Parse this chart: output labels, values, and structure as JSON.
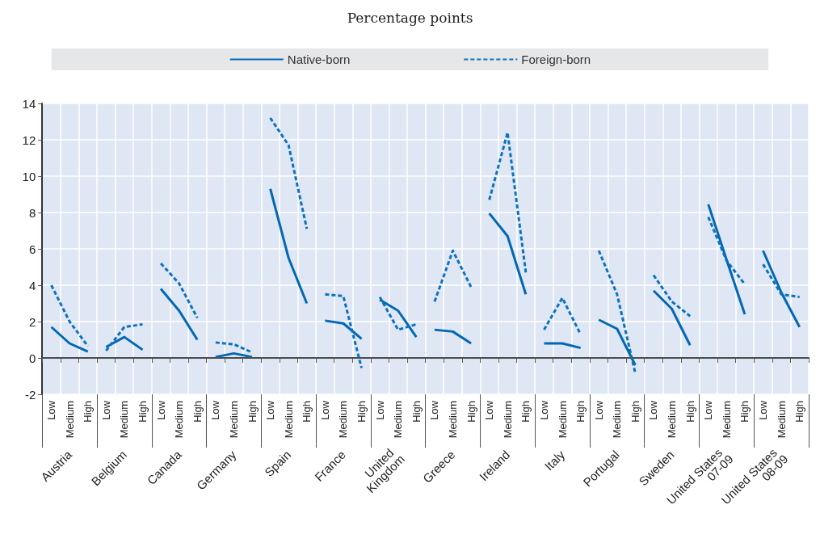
{
  "chart_data": {
    "type": "line",
    "subtitle": "Percentage points",
    "categories": [
      "Low",
      "Medium",
      "High",
      "Low",
      "Medium",
      "High",
      "Low",
      "Medium",
      "High",
      "Low",
      "Medium",
      "High",
      "Low",
      "Medium",
      "High",
      "Low",
      "Medium",
      "High",
      "Low",
      "Medium",
      "High",
      "Low",
      "Medium",
      "High",
      "Low",
      "Medium",
      "High",
      "Low",
      "Medium",
      "High",
      "Low",
      "Medium",
      "High",
      "Low",
      "Medium",
      "High",
      "Low",
      "Medium",
      "High",
      "Low",
      "Medium",
      "High"
    ],
    "annotations": [
      "Austria",
      "Belgium",
      "Canada",
      "Germany",
      "Spain",
      "France",
      "United Kingdom",
      "Greece",
      "Ireland",
      "Italy",
      "Portugal",
      "Sweden",
      "United States 07-09",
      "United States 08-09"
    ],
    "series": [
      {
        "name": "Native-born",
        "color": "#0068b4",
        "line_style": "solid",
        "values": [
          1.7,
          0.8,
          0.35,
          0.6,
          1.15,
          0.45,
          3.8,
          2.6,
          1.0,
          0.05,
          0.25,
          0.05,
          9.3,
          5.5,
          3.0,
          2.05,
          1.9,
          1.05,
          3.2,
          2.6,
          1.15,
          1.55,
          1.45,
          0.8,
          7.95,
          6.7,
          3.5,
          0.8,
          0.8,
          0.55,
          2.1,
          1.6,
          -0.4,
          3.7,
          2.7,
          0.7,
          8.45,
          5.4,
          2.4,
          5.9,
          3.6,
          1.7
        ]
      },
      {
        "name": "Foreign-born",
        "color": "#0a72be",
        "line_style": "dashed",
        "values": [
          4.0,
          2.0,
          0.65,
          0.4,
          1.7,
          1.85,
          5.2,
          4.1,
          2.2,
          0.85,
          0.75,
          0.3,
          13.2,
          11.7,
          7.1,
          3.5,
          3.4,
          -0.55,
          3.35,
          1.55,
          1.85,
          3.1,
          5.9,
          3.9,
          8.7,
          12.4,
          4.7,
          1.55,
          3.3,
          1.3,
          5.9,
          3.5,
          -0.85,
          4.55,
          3.1,
          2.3,
          7.75,
          5.35,
          4.05,
          5.15,
          3.5,
          3.35
        ]
      }
    ],
    "ylim": [
      -2,
      14
    ],
    "yticks": [
      -2,
      0,
      2,
      4,
      6,
      8,
      10,
      12,
      14
    ],
    "grid": true,
    "legend": "top",
    "marker": "none",
    "ref_lines": [
      {
        "axis": "y",
        "value": 0,
        "color": "#555555"
      }
    ]
  }
}
